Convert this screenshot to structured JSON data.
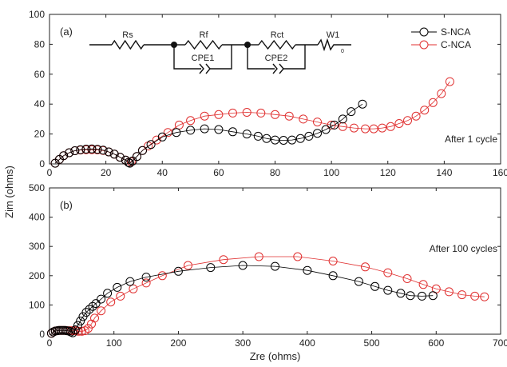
{
  "colors": {
    "s_nca": "#000000",
    "c_nca": "#e03030",
    "axis": "#222222"
  },
  "chart_data": [
    {
      "panel": "(a)",
      "type": "scatter",
      "annotation": "After 1 cycle",
      "xlim": [
        0,
        160
      ],
      "ylim": [
        0,
        100
      ],
      "xticks": [
        "0",
        "20",
        "40",
        "60",
        "80",
        "100",
        "120",
        "140",
        "160"
      ],
      "yticks": [
        "0",
        "20",
        "40",
        "60",
        "80",
        "100"
      ],
      "xlabel": "",
      "ylabel": "Zim (ohms)",
      "legend": {
        "placement": "top-right",
        "entries": [
          "S-NCA",
          "C-NCA"
        ]
      },
      "circuit_labels": [
        "Rs",
        "Rf",
        "Rct",
        "W1",
        "CPE1",
        "CPE2"
      ],
      "series": [
        {
          "name": "S-NCA",
          "x": [
            2,
            3.5,
            5,
            7,
            9,
            11,
            13,
            15,
            17,
            19,
            21,
            23,
            25,
            27,
            28,
            28.5,
            29.5,
            31,
            33,
            36,
            40,
            45,
            50,
            55,
            60,
            65,
            70,
            74,
            77,
            80,
            83,
            86,
            89,
            92,
            95,
            98,
            101,
            104,
            107,
            111
          ],
          "y": [
            0.5,
            3,
            5.5,
            7.5,
            8.8,
            9.5,
            9.9,
            10,
            9.8,
            9.2,
            8,
            6.5,
            4.5,
            2.5,
            1,
            0.5,
            2,
            5,
            9,
            13,
            18,
            21,
            22.5,
            23.5,
            23,
            21.5,
            20,
            18.5,
            17,
            16,
            15.8,
            16,
            17,
            18.5,
            20.5,
            23,
            26,
            30,
            35,
            40
          ]
        },
        {
          "name": "C-NCA",
          "x": [
            2,
            3.5,
            5,
            7,
            9,
            11,
            13,
            15,
            17,
            19,
            21,
            23,
            25,
            27,
            28,
            29,
            31,
            33,
            35,
            38,
            42,
            46,
            50,
            55,
            60,
            65,
            70,
            75,
            80,
            85,
            90,
            95,
            100,
            104,
            108,
            112,
            115,
            118,
            121,
            124,
            127,
            130,
            133,
            136,
            139,
            142
          ],
          "y": [
            0.5,
            3,
            5.5,
            7.5,
            8.8,
            9.3,
            9.5,
            9.5,
            9.4,
            9,
            8,
            6.5,
            4.5,
            2.5,
            1,
            1.5,
            5,
            9,
            12,
            16,
            21,
            26,
            29,
            32,
            33,
            34,
            34.5,
            34,
            33,
            32,
            30,
            28,
            26,
            25,
            24,
            23.5,
            23.5,
            24,
            25,
            27,
            29,
            32,
            36,
            41,
            47,
            55
          ]
        }
      ]
    },
    {
      "panel": "(b)",
      "type": "scatter",
      "annotation": "After 100 cycles",
      "xlim": [
        0,
        700
      ],
      "ylim": [
        0,
        500
      ],
      "xticks": [
        "0",
        "100",
        "200",
        "300",
        "400",
        "500",
        "600",
        "700"
      ],
      "yticks": [
        "0",
        "100",
        "200",
        "300",
        "400",
        "500"
      ],
      "xlabel": "Zre (ohms)",
      "ylabel": "",
      "series": [
        {
          "name": "S-NCA",
          "x": [
            3,
            6,
            9,
            12,
            15,
            18,
            21,
            24,
            27,
            30,
            33,
            36,
            40,
            44,
            48,
            52,
            57,
            62,
            67,
            72,
            80,
            90,
            105,
            125,
            150,
            200,
            250,
            300,
            350,
            400,
            440,
            480,
            505,
            525,
            545,
            560,
            578,
            595
          ],
          "y": [
            3,
            8,
            11,
            12,
            13,
            13,
            13,
            13,
            12,
            11,
            8,
            5,
            15,
            30,
            45,
            60,
            75,
            85,
            95,
            105,
            120,
            140,
            160,
            180,
            195,
            215,
            228,
            235,
            232,
            218,
            200,
            180,
            163,
            150,
            140,
            132,
            130,
            132
          ]
        },
        {
          "name": "C-NCA",
          "x": [
            3,
            6,
            9,
            12,
            15,
            18,
            21,
            24,
            27,
            30,
            33,
            36,
            40,
            45,
            50,
            55,
            60,
            65,
            70,
            80,
            95,
            110,
            130,
            150,
            175,
            215,
            270,
            325,
            385,
            440,
            490,
            525,
            555,
            580,
            600,
            620,
            640,
            660,
            675
          ],
          "y": [
            3,
            8,
            11,
            12,
            13,
            13,
            13,
            13,
            12,
            12,
            12,
            12,
            12,
            10,
            10,
            12,
            20,
            35,
            55,
            80,
            110,
            130,
            155,
            175,
            200,
            235,
            255,
            265,
            265,
            250,
            230,
            210,
            190,
            170,
            155,
            145,
            135,
            130,
            128
          ]
        }
      ]
    }
  ]
}
